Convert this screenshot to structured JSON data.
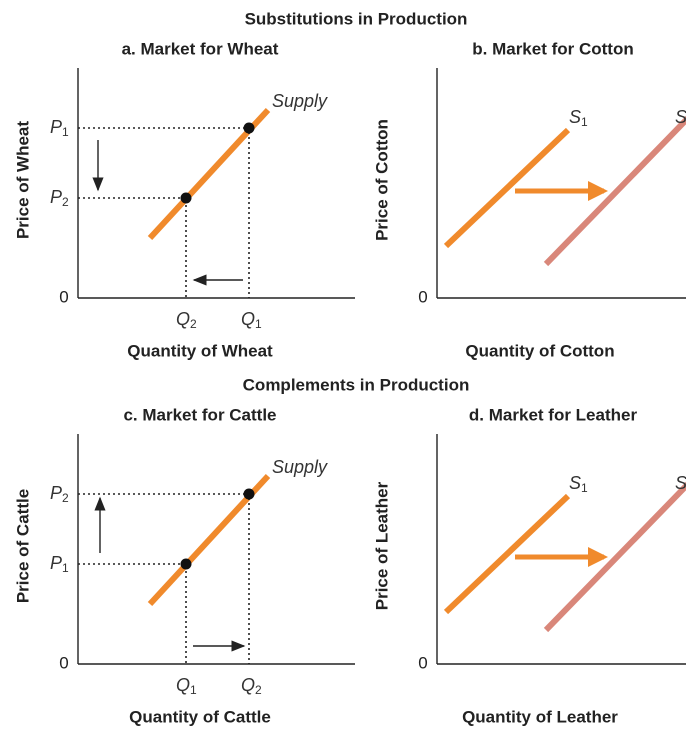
{
  "sections": [
    {
      "title": "Substitutions in Production",
      "panels": [
        {
          "title": "a. Market for Wheat",
          "y_label": "Price of Wheat",
          "x_label": "Quantity of Wheat",
          "origin": "0",
          "curve": "Supply",
          "price_high": {
            "letter": "P",
            "sub": "1"
          },
          "price_low": {
            "letter": "P",
            "sub": "2"
          },
          "qty_low": {
            "letter": "Q",
            "sub": "2"
          },
          "qty_high": {
            "letter": "Q",
            "sub": "1"
          }
        },
        {
          "title": "b. Market for Cotton",
          "y_label": "Price of Cotton",
          "x_label": "Quantity of Cotton",
          "origin": "0",
          "curve_1": {
            "letter": "S",
            "sub": "1"
          },
          "curve_2": {
            "letter": "S"
          }
        }
      ]
    },
    {
      "title": "Complements in Production",
      "panels": [
        {
          "title": "c. Market for Cattle",
          "y_label": "Price of Cattle",
          "x_label": "Quantity of Cattle",
          "origin": "0",
          "curve": "Supply",
          "price_high": {
            "letter": "P",
            "sub": "2"
          },
          "price_low": {
            "letter": "P",
            "sub": "1"
          },
          "qty_low": {
            "letter": "Q",
            "sub": "1"
          },
          "qty_high": {
            "letter": "Q",
            "sub": "2"
          }
        },
        {
          "title": "d. Market for Leather",
          "y_label": "Price of Leather",
          "x_label": "Quantity of Leather",
          "origin": "0",
          "curve_1": {
            "letter": "S",
            "sub": "1"
          },
          "curve_2": {
            "letter": "S"
          }
        }
      ]
    }
  ]
}
